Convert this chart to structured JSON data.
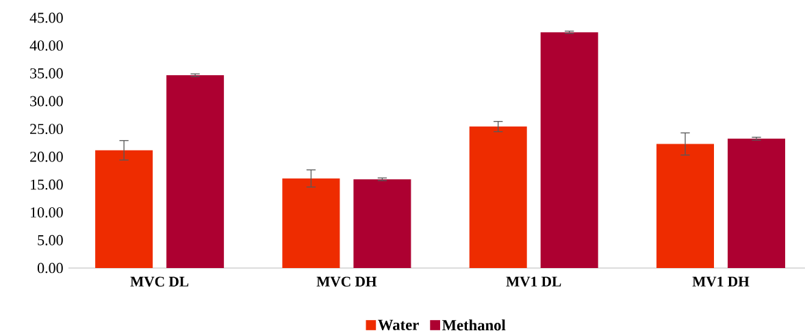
{
  "chart_data": {
    "type": "bar",
    "categories": [
      "MVC DL",
      "MVC DH",
      "MV1 DL",
      "MV1 DH"
    ],
    "series": [
      {
        "name": "Water",
        "color": "#ee2c00",
        "values": [
          21.17,
          16.11,
          25.44,
          22.31
        ],
        "errors": [
          1.75,
          1.54,
          0.92,
          1.99
        ]
      },
      {
        "name": "Methanol",
        "color": "#ad0031",
        "values": [
          34.67,
          15.96,
          42.4,
          23.26
        ],
        "errors": [
          0.24,
          0.24,
          0.2,
          0.26
        ]
      }
    ],
    "ylim": [
      0,
      45
    ],
    "yticks": [
      {
        "value": 0,
        "label": "0.00"
      },
      {
        "value": 5,
        "label": "5.00"
      },
      {
        "value": 10,
        "label": "10.00"
      },
      {
        "value": 15,
        "label": "15.00"
      },
      {
        "value": 20,
        "label": "20.00"
      },
      {
        "value": 25,
        "label": "25.00"
      },
      {
        "value": 30,
        "label": "30.00"
      },
      {
        "value": 35,
        "label": "35.00"
      },
      {
        "value": 40,
        "label": "40.00"
      },
      {
        "value": 45,
        "label": "45.00"
      }
    ],
    "legend": "bottom"
  }
}
